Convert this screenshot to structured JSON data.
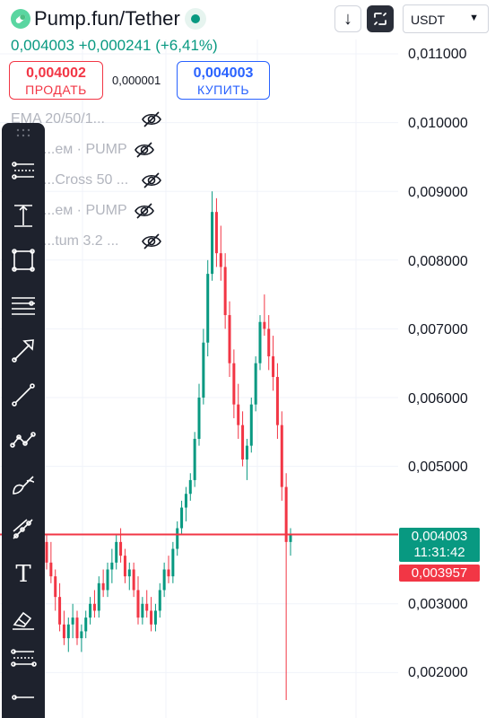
{
  "header": {
    "title": "Pump.fun/Tether",
    "currency": "USDT"
  },
  "price": {
    "last": "0,004003",
    "change": "+0,000241",
    "change_pct": "(+6,41%)"
  },
  "trade": {
    "sell_price": "0,004002",
    "sell_label": "ПРОДАТЬ",
    "spread": "0,000001",
    "buy_price": "0,004003",
    "buy_label": "КУПИТЬ"
  },
  "indicators": [
    {
      "label": "EMA 20/50/1..."
    },
    {
      "label": "...ем · PUMP"
    },
    {
      "label": "...Cross 50 ..."
    },
    {
      "label": "...ем · PUMP"
    },
    {
      "label": "...tum 3.2 ..."
    }
  ],
  "toolbar": {
    "tools": [
      "multi-line-icon",
      "vertical-measure-icon",
      "rectangle-icon",
      "parallel-channel-icon",
      "arrow-icon",
      "trend-line-icon",
      "zigzag-icon",
      "brush-icon",
      "crossing-lines-icon",
      "text-tool-icon",
      "eraser-icon",
      "ruler-icon",
      "horizontal-line-icon"
    ],
    "text_tool": "T"
  },
  "axis": {
    "ticks": [
      "0,011000",
      "0,010000",
      "0,009000",
      "0,008000",
      "0,007000",
      "0,006000",
      "0,005000",
      "0,003000",
      "0,002000"
    ]
  },
  "price_tags": {
    "last_price": "0,004003",
    "countdown": "11:31:42",
    "bid_price": "0,003957"
  },
  "colors": {
    "up": "#089981",
    "down": "#f23645",
    "buy": "#2962ff",
    "toolbar_bg": "#1e222d"
  },
  "chart_data": {
    "type": "candlestick",
    "y_ticks": [
      0.011,
      0.01,
      0.009,
      0.008,
      0.007,
      0.006,
      0.005,
      0.003,
      0.002
    ],
    "last_price": 0.004003,
    "bid_price": 0.003957,
    "candles": [
      [
        0.0039,
        0.004,
        0.0035,
        0.0036
      ],
      [
        0.0036,
        0.0039,
        0.0033,
        0.0034
      ],
      [
        0.0034,
        0.0035,
        0.0029,
        0.0031
      ],
      [
        0.0031,
        0.0033,
        0.0026,
        0.0027
      ],
      [
        0.0027,
        0.0029,
        0.0024,
        0.0025
      ],
      [
        0.0025,
        0.0028,
        0.0023,
        0.0027
      ],
      [
        0.0027,
        0.003,
        0.0025,
        0.0028
      ],
      [
        0.0028,
        0.0029,
        0.0024,
        0.0025
      ],
      [
        0.0025,
        0.0027,
        0.0023,
        0.0026
      ],
      [
        0.0026,
        0.0029,
        0.0025,
        0.0028
      ],
      [
        0.0028,
        0.0031,
        0.0027,
        0.003
      ],
      [
        0.003,
        0.0032,
        0.0028,
        0.0029
      ],
      [
        0.0029,
        0.0034,
        0.0028,
        0.0033
      ],
      [
        0.0033,
        0.0035,
        0.0031,
        0.0032
      ],
      [
        0.0032,
        0.0036,
        0.0031,
        0.0035
      ],
      [
        0.0035,
        0.0038,
        0.0033,
        0.0036
      ],
      [
        0.0036,
        0.004,
        0.0035,
        0.0039
      ],
      [
        0.0039,
        0.0041,
        0.0036,
        0.0037
      ],
      [
        0.0037,
        0.0038,
        0.0033,
        0.0034
      ],
      [
        0.0034,
        0.0036,
        0.0032,
        0.0035
      ],
      [
        0.0035,
        0.0036,
        0.0031,
        0.0032
      ],
      [
        0.0032,
        0.0034,
        0.0027,
        0.0028
      ],
      [
        0.0028,
        0.0031,
        0.0027,
        0.003
      ],
      [
        0.003,
        0.0032,
        0.0028,
        0.0029
      ],
      [
        0.0029,
        0.0031,
        0.0026,
        0.0027
      ],
      [
        0.0027,
        0.003,
        0.0026,
        0.0029
      ],
      [
        0.0029,
        0.0033,
        0.0028,
        0.0032
      ],
      [
        0.0032,
        0.0036,
        0.0031,
        0.0035
      ],
      [
        0.0035,
        0.0037,
        0.0033,
        0.0034
      ],
      [
        0.0034,
        0.0039,
        0.0033,
        0.0038
      ],
      [
        0.0038,
        0.0042,
        0.0037,
        0.0041
      ],
      [
        0.0041,
        0.0045,
        0.004,
        0.0044
      ],
      [
        0.0044,
        0.0047,
        0.0042,
        0.0046
      ],
      [
        0.0046,
        0.0049,
        0.0045,
        0.0048
      ],
      [
        0.0048,
        0.0055,
        0.0047,
        0.0054
      ],
      [
        0.0054,
        0.0062,
        0.0053,
        0.006
      ],
      [
        0.006,
        0.007,
        0.0059,
        0.0068
      ],
      [
        0.0068,
        0.008,
        0.0066,
        0.0078
      ],
      [
        0.0078,
        0.009,
        0.0077,
        0.0087
      ],
      [
        0.0087,
        0.0089,
        0.0079,
        0.0081
      ],
      [
        0.0081,
        0.0085,
        0.0077,
        0.0079
      ],
      [
        0.0079,
        0.0081,
        0.007,
        0.0072
      ],
      [
        0.0072,
        0.0074,
        0.0063,
        0.0065
      ],
      [
        0.0065,
        0.0067,
        0.0057,
        0.0059
      ],
      [
        0.0059,
        0.0062,
        0.0054,
        0.0056
      ],
      [
        0.0056,
        0.0058,
        0.005,
        0.0051
      ],
      [
        0.0051,
        0.0054,
        0.0048,
        0.0053
      ],
      [
        0.0053,
        0.006,
        0.0052,
        0.0059
      ],
      [
        0.0059,
        0.0066,
        0.0058,
        0.0065
      ],
      [
        0.0065,
        0.0072,
        0.0064,
        0.0071
      ],
      [
        0.0071,
        0.0075,
        0.0069,
        0.007
      ],
      [
        0.007,
        0.0072,
        0.0064,
        0.0066
      ],
      [
        0.0066,
        0.0069,
        0.0061,
        0.0063
      ],
      [
        0.0063,
        0.0065,
        0.0054,
        0.0056
      ],
      [
        0.0056,
        0.0058,
        0.0045,
        0.0047
      ],
      [
        0.0047,
        0.0049,
        0.0016,
        0.0039
      ],
      [
        0.0039,
        0.0041,
        0.0037,
        0.004
      ]
    ]
  }
}
